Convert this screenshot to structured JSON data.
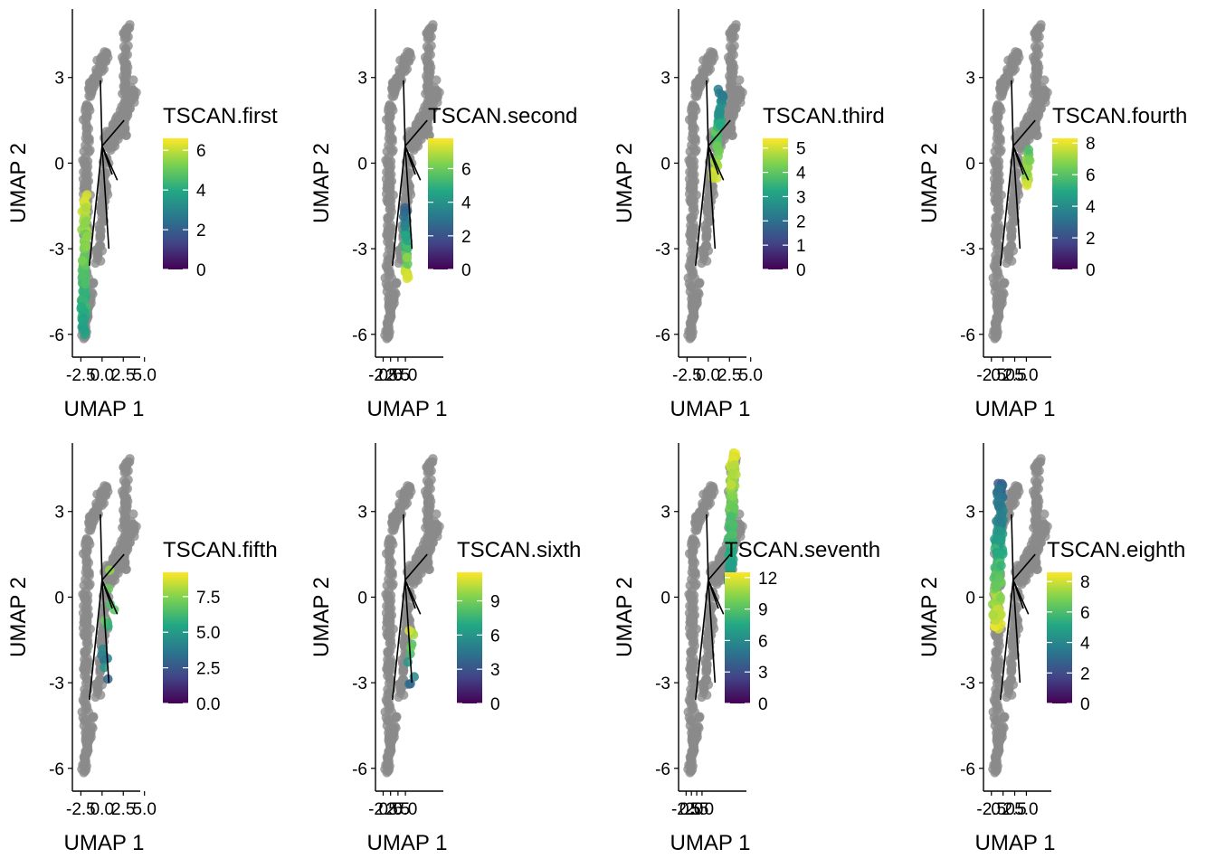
{
  "colors": {
    "background_point": "#8a8a8a",
    "trajectory_line": "#000000",
    "viridis": [
      "#440154",
      "#414487",
      "#2A788E",
      "#22A884",
      "#7AD151",
      "#FDE725"
    ]
  },
  "chart_data": [
    {
      "type": "scatter",
      "title": "",
      "xlabel": "UMAP 1",
      "ylabel": "UMAP 2",
      "legend_title": "TSCAN.first",
      "legend_position": "right",
      "legend_range": [
        0,
        6.6
      ],
      "legend_ticks": [
        0,
        2,
        4,
        6
      ],
      "legend_tick_labels": [
        "0",
        "2",
        "4",
        "6"
      ],
      "xlim": [
        -3.5,
        4.5
      ],
      "x_tick_labels": [
        "-2.5",
        "0.0",
        "2.5",
        "5.0"
      ],
      "ylim": [
        -6.8,
        5.4
      ],
      "y_ticks": [
        -6,
        -3,
        0,
        3
      ],
      "y_tick_labels": [
        "-6",
        "-3",
        "0",
        "3"
      ],
      "highlighted_region": "lower-left arm (UMAP 2 from -6 to -1)"
    },
    {
      "type": "scatter",
      "title": "",
      "xlabel": "UMAP 1",
      "ylabel": "UMAP 2",
      "legend_title": "TSCAN.second",
      "legend_position": "right",
      "legend_range": [
        0,
        7.8
      ],
      "legend_ticks": [
        0,
        2,
        4,
        6
      ],
      "legend_tick_labels": [
        "0",
        "2",
        "4",
        "6"
      ],
      "xlim": [
        -3.5,
        4.5
      ],
      "x_tick_labels": [
        "-2.5",
        "0.0",
        "2.5",
        "5.0"
      ],
      "ylim": [
        -6.8,
        5.4
      ],
      "y_ticks": [
        -6,
        -3,
        0,
        3
      ],
      "y_tick_labels": [
        "-6",
        "-3",
        "0",
        "3"
      ],
      "highlighted_region": "small lower-middle branch (UMAP 2 from -4 to -1.5)"
    },
    {
      "type": "scatter",
      "title": "",
      "xlabel": "UMAP 1",
      "ylabel": "UMAP 2",
      "legend_title": "TSCAN.third",
      "legend_position": "right",
      "legend_range": [
        0,
        5.4
      ],
      "legend_ticks": [
        0,
        1,
        2,
        3,
        4,
        5
      ],
      "legend_tick_labels": [
        "0",
        "1",
        "2",
        "3",
        "4",
        "5"
      ],
      "xlim": [
        -3.5,
        4.5
      ],
      "x_tick_labels": [
        "-2.5",
        "0.0",
        "2.5",
        "5.0"
      ],
      "ylim": [
        -6.8,
        5.4
      ],
      "y_ticks": [
        -6,
        -3,
        0,
        3
      ],
      "y_tick_labels": [
        "-6",
        "-3",
        "0",
        "3"
      ],
      "highlighted_region": "center-right branch (UMAP 2 from -0.5 to 2.5)"
    },
    {
      "type": "scatter",
      "title": "",
      "xlabel": "UMAP 1",
      "ylabel": "UMAP 2",
      "legend_title": "TSCAN.fourth",
      "legend_position": "right",
      "legend_range": [
        0,
        8.3
      ],
      "legend_ticks": [
        0,
        2,
        4,
        6,
        8
      ],
      "legend_tick_labels": [
        "0",
        "2",
        "4",
        "6",
        "8"
      ],
      "xlim": [
        -3.5,
        4.5
      ],
      "x_tick_labels": [
        "-2.5",
        "0.0",
        "2.5",
        "5.0"
      ],
      "ylim": [
        -6.8,
        5.4
      ],
      "y_ticks": [
        -6,
        -3,
        0,
        3
      ],
      "y_tick_labels": [
        "-6",
        "-3",
        "0",
        "3"
      ],
      "highlighted_region": "right branch (UMAP 2 from -1 to 0.5)"
    },
    {
      "type": "scatter",
      "title": "",
      "xlabel": "UMAP 1",
      "ylabel": "UMAP 2",
      "legend_title": "TSCAN.fifth",
      "legend_position": "right",
      "legend_range": [
        0,
        9.2
      ],
      "legend_ticks": [
        0,
        2.5,
        5,
        7.5
      ],
      "legend_tick_labels": [
        "0.0",
        "2.5",
        "5.0",
        "7.5"
      ],
      "xlim": [
        -3.5,
        4.5
      ],
      "x_tick_labels": [
        "-2.5",
        "0.0",
        "2.5",
        "5.0"
      ],
      "ylim": [
        -6.8,
        5.4
      ],
      "y_ticks": [
        -6,
        -3,
        0,
        3
      ],
      "y_tick_labels": [
        "-6",
        "-3",
        "0",
        "3"
      ],
      "highlighted_region": "sparse points along lower-middle branch (UMAP 2 near -3)"
    },
    {
      "type": "scatter",
      "title": "",
      "xlabel": "UMAP 1",
      "ylabel": "UMAP 2",
      "legend_title": "TSCAN.sixth",
      "legend_position": "right",
      "legend_range": [
        0,
        11.5
      ],
      "legend_ticks": [
        0,
        3,
        6,
        9
      ],
      "legend_tick_labels": [
        "0",
        "3",
        "6",
        "9"
      ],
      "xlim": [
        -3.5,
        4.5
      ],
      "x_tick_labels": [
        "-2.5",
        "0.0",
        "2.5",
        "5.0"
      ],
      "ylim": [
        -6.8,
        5.4
      ],
      "y_ticks": [
        -6,
        -3,
        0,
        3
      ],
      "y_tick_labels": [
        "-6",
        "-3",
        "0",
        "3"
      ],
      "highlighted_region": "few points near UMAP 2 = -1.5 and -3.5"
    },
    {
      "type": "scatter",
      "title": "",
      "xlabel": "UMAP 1",
      "ylabel": "UMAP 2",
      "legend_title": "TSCAN.seventh",
      "legend_position": "right",
      "legend_range": [
        0,
        12.5
      ],
      "legend_ticks": [
        0,
        3,
        6,
        9,
        12
      ],
      "legend_tick_labels": [
        "0",
        "3",
        "6",
        "9",
        "12"
      ],
      "xlim": [
        -3.5,
        4.5
      ],
      "x_tick_labels": [
        "-2.5",
        "0.0",
        "2.5",
        "5.0"
      ],
      "ylim": [
        -6.8,
        5.4
      ],
      "y_ticks": [
        -6,
        -3,
        0,
        3
      ],
      "y_tick_labels": [
        "-6",
        "-3",
        "0",
        "3"
      ],
      "highlighted_region": "upper-right arm (UMAP 2 from 0 to 5)"
    },
    {
      "type": "scatter",
      "title": "",
      "xlabel": "UMAP 1",
      "ylabel": "UMAP 2",
      "legend_title": "TSCAN.eighth",
      "legend_position": "right",
      "legend_range": [
        0,
        8.6
      ],
      "legend_ticks": [
        0,
        2,
        4,
        6,
        8
      ],
      "legend_tick_labels": [
        "0",
        "2",
        "4",
        "6",
        "8"
      ],
      "xlim": [
        -3.5,
        4.5
      ],
      "x_tick_labels": [
        "-2.5",
        "0.0",
        "2.5",
        "5.0"
      ],
      "ylim": [
        -6.8,
        5.4
      ],
      "y_ticks": [
        -6,
        -3,
        0,
        3
      ],
      "y_tick_labels": [
        "-6",
        "-3",
        "0",
        "3"
      ],
      "highlighted_region": "upper-left arm (UMAP 2 from -1 to 4)"
    }
  ]
}
